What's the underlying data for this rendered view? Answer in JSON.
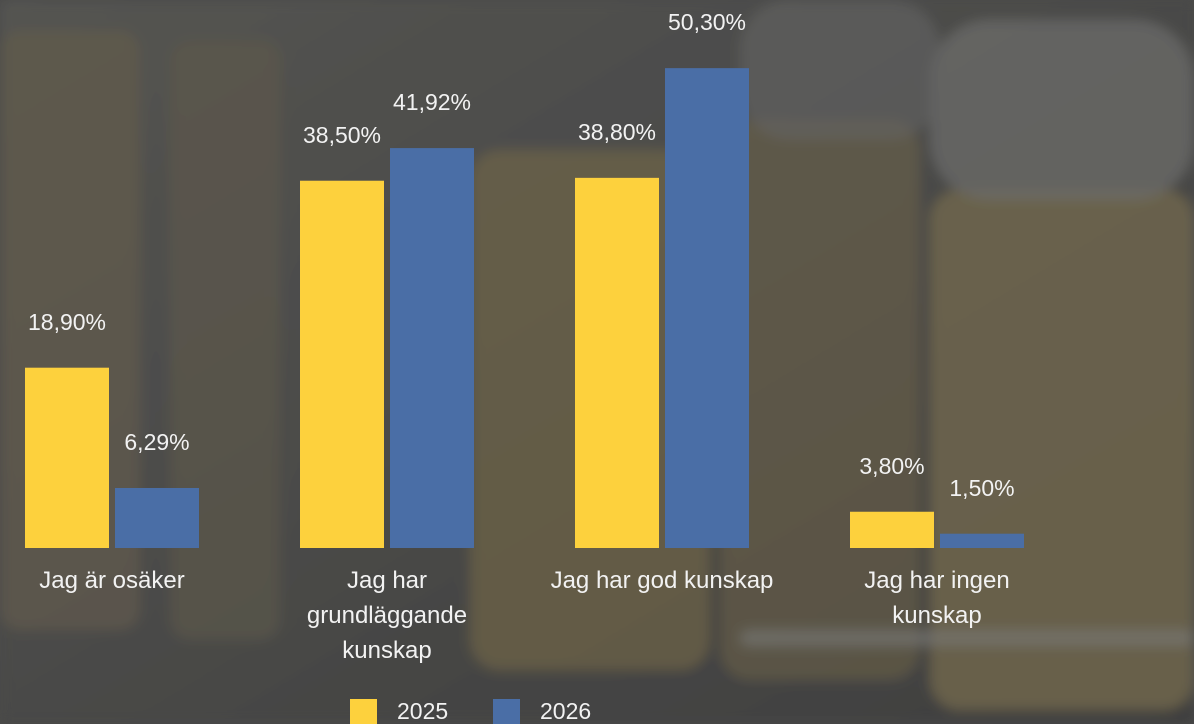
{
  "chart_data": {
    "type": "bar",
    "categories": [
      "Jag är osäker",
      "Jag har grundläggande kunskap",
      "Jag har god kunskap",
      "Jag har ingen kunskap"
    ],
    "series": [
      {
        "name": "2025",
        "color": "#fdd13d",
        "values": [
          18.9,
          38.5,
          38.8,
          3.8
        ],
        "value_labels": [
          "18,90%",
          "38,50%",
          "38,80%",
          "3,80%"
        ]
      },
      {
        "name": "2026",
        "color": "#4a6ea6",
        "values": [
          6.29,
          41.92,
          50.3,
          1.5
        ],
        "value_labels": [
          "6,29%",
          "41,92%",
          "50,30%",
          "1,50%"
        ]
      }
    ],
    "legend": "bottom"
  }
}
